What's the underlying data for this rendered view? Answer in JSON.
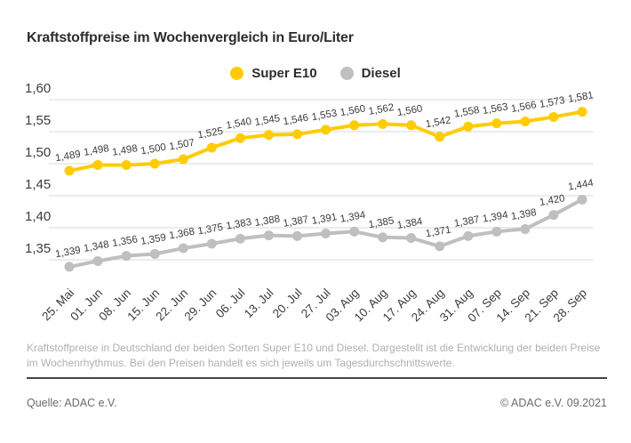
{
  "header": {
    "title": "Kraftstoffpreise im Wochenvergleich in Euro/Liter"
  },
  "legend": [
    {
      "label": "Super E10",
      "color": "#FFCC00"
    },
    {
      "label": "Diesel",
      "color": "#BFBFBF"
    }
  ],
  "chart_data": {
    "type": "line",
    "title": "Kraftstoffpreise im Wochenvergleich in Euro/Liter",
    "xlabel": "",
    "ylabel": "Euro/Liter",
    "grid": true,
    "legend_position": "top-center",
    "grid_color": "#d9d9d9",
    "ylim": [
      1.32,
      1.61
    ],
    "yticks": [
      {
        "value": 1.6,
        "label": "1,60"
      },
      {
        "value": 1.55,
        "label": "1,55"
      },
      {
        "value": 1.5,
        "label": "1,50"
      },
      {
        "value": 1.45,
        "label": "1,45"
      },
      {
        "value": 1.4,
        "label": "1,40"
      },
      {
        "value": 1.35,
        "label": "1,35"
      }
    ],
    "categories": [
      "25. Mai",
      "01. Jun",
      "08. Jun",
      "15. Jun",
      "22. Jun",
      "29. Jun",
      "06. Jul",
      "13. Jul",
      "20. Jul",
      "27. Jul",
      "03. Aug",
      "10. Aug",
      "17. Aug",
      "24. Aug",
      "31. Aug",
      "07. Sep",
      "14. Sep",
      "21. Sep",
      "28. Sep"
    ],
    "series": [
      {
        "name": "Super E10",
        "color": "#FFCC00",
        "values": [
          1.489,
          1.498,
          1.498,
          1.5,
          1.507,
          1.525,
          1.54,
          1.545,
          1.546,
          1.553,
          1.56,
          1.562,
          1.56,
          1.542,
          1.558,
          1.563,
          1.566,
          1.573,
          1.581
        ],
        "labels": [
          "1,489",
          "1,498",
          "1,498",
          "1,500",
          "1,507",
          "1,525",
          "1,540",
          "1,545",
          "1,546",
          "1,553",
          "1,560",
          "1,562",
          "1,560",
          "1,542",
          "1,558",
          "1,563",
          "1,566",
          "1,573",
          "1,581"
        ]
      },
      {
        "name": "Diesel",
        "color": "#BFBFBF",
        "values": [
          1.339,
          1.348,
          1.356,
          1.359,
          1.368,
          1.375,
          1.383,
          1.388,
          1.387,
          1.391,
          1.394,
          1.385,
          1.384,
          1.371,
          1.387,
          1.394,
          1.398,
          1.42,
          1.444
        ],
        "labels": [
          "1,339",
          "1,348",
          "1,356",
          "1,359",
          "1,368",
          "1,375",
          "1,383",
          "1,388",
          "1,387",
          "1,391",
          "1,394",
          "1,385",
          "1,384",
          "1,371",
          "1,387",
          "1,394",
          "1,398",
          "1,420",
          "1,444"
        ]
      }
    ]
  },
  "footer": {
    "description": "Kraftstoffpreise in Deutschland der beiden Sorten Super E10 und Diesel. Dargestellt ist die Entwicklung der beiden Preise im Wochenrhythmus. Bei den Preisen handelt es sich jeweils um Tagesdurchschnittswerte.",
    "source": "Quelle: ADAC e.V.",
    "copyright": "© ADAC e.V. 09.2021"
  }
}
